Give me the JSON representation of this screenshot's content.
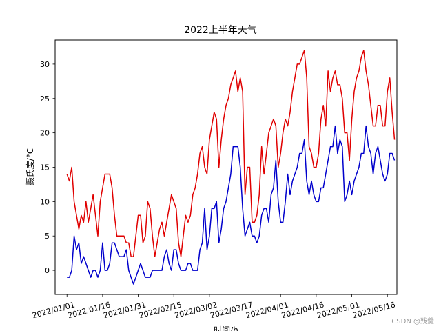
{
  "chart_data": {
    "type": "line",
    "title": "2022上半年天气",
    "xlabel": "时间/h",
    "ylabel": "摄氏度/°C",
    "xlim": [
      "2021-12-27",
      "2022-05-20"
    ],
    "ylim": [
      -3.5,
      33.5
    ],
    "y_ticks": [
      0,
      5,
      10,
      15,
      20,
      25,
      30
    ],
    "x_tick_labels": [
      "2022/01/01",
      "2022/01/16",
      "2022/01/31",
      "2022/02/15",
      "2022/03/02",
      "2022/03/17",
      "2022/04/01",
      "2022/04/16",
      "2022/05/01",
      "2022/05/16"
    ],
    "x_tick_dates": [
      "2022-01-01",
      "2022-01-16",
      "2022-01-31",
      "2022-02-15",
      "2022-03-02",
      "2022-03-17",
      "2022-04-01",
      "2022-04-16",
      "2022-05-01",
      "2022-05-16"
    ],
    "grid": false,
    "start_date": "2022-01-01",
    "series": [
      {
        "color": "#e00000",
        "values": [
          14,
          13,
          15,
          10,
          8,
          6,
          8,
          7,
          10,
          7,
          9,
          11,
          8,
          5,
          10,
          12,
          14,
          14,
          14,
          12,
          8,
          5,
          5,
          5,
          5,
          4,
          4,
          2,
          2,
          5,
          8,
          8,
          4,
          5,
          10,
          9,
          5,
          2,
          4,
          6,
          7,
          5,
          7,
          9,
          11,
          10,
          9,
          4,
          2,
          5,
          8,
          7,
          8,
          11,
          12,
          14,
          17,
          18,
          15,
          14,
          19,
          21,
          23,
          22,
          15,
          19,
          22,
          24,
          25,
          27,
          28,
          29,
          26,
          28,
          26,
          11,
          15,
          15,
          7,
          7,
          8,
          11,
          18,
          14,
          17,
          20,
          21,
          22,
          21,
          15,
          17,
          20,
          22,
          21,
          23,
          26,
          28,
          30,
          30,
          31,
          32,
          28,
          18,
          17,
          15,
          15,
          17,
          22,
          24,
          21,
          29,
          26,
          28,
          29,
          27,
          27,
          25,
          20,
          20,
          16,
          22,
          26,
          28,
          29,
          31,
          32,
          29,
          27,
          24,
          21,
          21,
          24,
          24,
          21,
          21,
          26,
          28,
          23,
          19
        ]
      },
      {
        "color": "#0000cc",
        "values": [
          -1,
          -1,
          0,
          5,
          3,
          4,
          1,
          2,
          1,
          0,
          -1,
          0,
          0,
          -1,
          0,
          4,
          0,
          0,
          1,
          4,
          4,
          3,
          2,
          2,
          2,
          3,
          0,
          -1,
          -2,
          -1,
          0,
          1,
          0,
          -1,
          -1,
          -1,
          0,
          0,
          0,
          0,
          0,
          2,
          3,
          1,
          0,
          3,
          3,
          1,
          0,
          0,
          0,
          1,
          1,
          0,
          0,
          0,
          3,
          4,
          9,
          3,
          5,
          9,
          9,
          10,
          4,
          6,
          9,
          10,
          12,
          14,
          18,
          18,
          18,
          15,
          9,
          5,
          6,
          7,
          5,
          5,
          4,
          5,
          8,
          9,
          9,
          7,
          11,
          12,
          16,
          10,
          7,
          7,
          10,
          14,
          11,
          13,
          14,
          15,
          17,
          17,
          19,
          13,
          11,
          13,
          11,
          10,
          10,
          12,
          12,
          14,
          16,
          18,
          18,
          21,
          17,
          19,
          18,
          10,
          11,
          13,
          11,
          13,
          14,
          15,
          17,
          17,
          21,
          18,
          17,
          14,
          17,
          18,
          16,
          14,
          13,
          14,
          17,
          17,
          16
        ]
      }
    ]
  },
  "watermark": "CSDN @残羹"
}
